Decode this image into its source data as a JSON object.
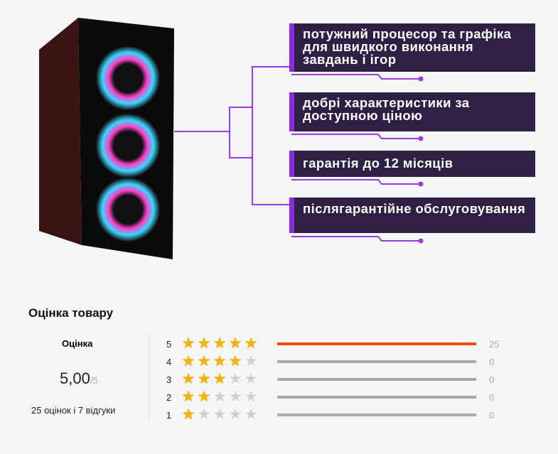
{
  "features": [
    {
      "text": "потужний процесор та графіка для швидкого виконання завдань і ігор"
    },
    {
      "text": "добрі характеристики за доступною ціною"
    },
    {
      "text": "гарантія до 12 місяців"
    },
    {
      "text": "післягарантійне обслуговування"
    }
  ],
  "rating": {
    "title": "Оцінка товару",
    "label": "Оцінка",
    "score": "5,00",
    "max": "/5",
    "summary": "25 оцінок і 7 відгуки",
    "rows": [
      {
        "stars": "5",
        "count": "25",
        "share": 1
      },
      {
        "stars": "4",
        "count": "0",
        "share": 0
      },
      {
        "stars": "3",
        "count": "0",
        "share": 0
      },
      {
        "stars": "2",
        "count": "0",
        "share": 0
      },
      {
        "stars": "1",
        "count": "0",
        "share": 0
      }
    ]
  },
  "colors": {
    "accent": "#8a2be2",
    "box": "#2e1f45",
    "bar_active": "#f04e12",
    "star": "#f5b400"
  }
}
